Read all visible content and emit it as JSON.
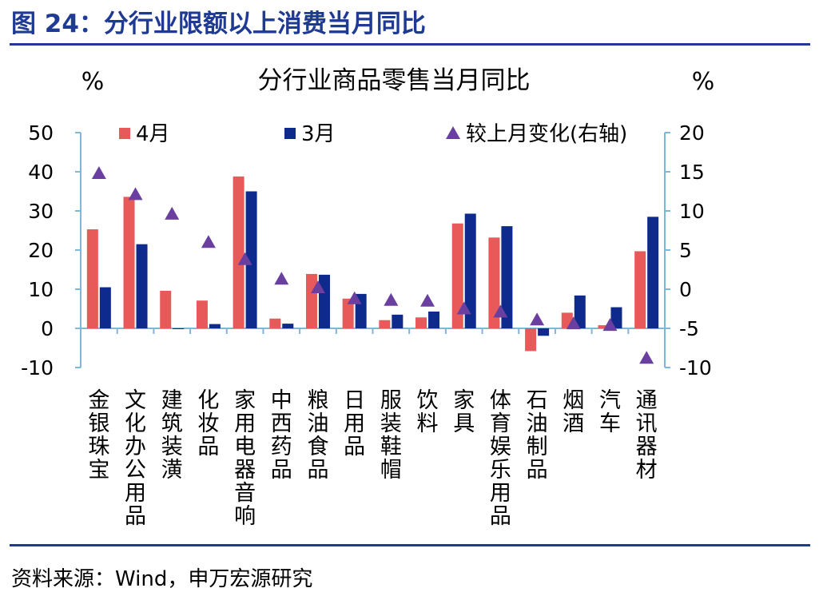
{
  "figure_title": "图 24：分行业限额以上消费当月同比",
  "source": "资料来源：Wind，申万宏源研究",
  "chart_data": {
    "type": "bar",
    "title": "分行业商品零售当月同比",
    "y_left_unit": "%",
    "y_right_unit": "%",
    "ylim": [
      -10,
      50
    ],
    "y2lim": [
      -10,
      20
    ],
    "yticks": [
      -10,
      0,
      10,
      20,
      30,
      40,
      50
    ],
    "y2ticks": [
      -10,
      -5,
      0,
      5,
      10,
      15,
      20
    ],
    "legend_position": "top",
    "categories": [
      "金银珠宝",
      "文化办公用品",
      "建筑装潢",
      "化妆品",
      "家用电器音响",
      "中西药品",
      "粮油食品",
      "日用品",
      "服装鞋帽",
      "饮料",
      "家具",
      "体育娱乐用品",
      "石油制品",
      "烟酒",
      "汽车",
      "通讯器材"
    ],
    "series": [
      {
        "name": "4月",
        "type": "bar",
        "axis": "left",
        "color": "#e8595a",
        "values": [
          25.3,
          33.6,
          9.6,
          7.1,
          38.8,
          2.5,
          13.9,
          7.6,
          2.1,
          2.8,
          26.8,
          23.2,
          -5.8,
          4.0,
          0.8,
          19.7
        ]
      },
      {
        "name": "3月",
        "type": "bar",
        "axis": "left",
        "color": "#0d2a8c",
        "values": [
          10.5,
          21.5,
          0.0,
          1.1,
          35.0,
          1.2,
          13.7,
          8.8,
          3.5,
          4.3,
          29.3,
          26.1,
          -1.9,
          8.4,
          5.4,
          28.5
        ]
      },
      {
        "name": "较上月变化(右轴)",
        "type": "scatter",
        "axis": "right",
        "color": "#6b3fa0",
        "values": [
          14.8,
          12.1,
          9.6,
          6.0,
          3.8,
          1.3,
          0.2,
          -1.2,
          -1.4,
          -1.5,
          -2.5,
          -2.9,
          -3.9,
          -4.4,
          -4.6,
          -8.8
        ]
      }
    ]
  }
}
